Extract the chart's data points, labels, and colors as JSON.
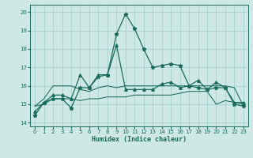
{
  "xlabel": "Humidex (Indice chaleur)",
  "background_color": "#cde8e5",
  "grid_color": "#9ececa",
  "line_color": "#1a6b5a",
  "xlim": [
    -0.5,
    23.5
  ],
  "ylim": [
    13.8,
    20.4
  ],
  "yticks": [
    14,
    15,
    16,
    17,
    18,
    19,
    20
  ],
  "xticks": [
    0,
    1,
    2,
    3,
    4,
    5,
    6,
    7,
    8,
    9,
    10,
    11,
    12,
    13,
    14,
    15,
    16,
    17,
    18,
    19,
    20,
    21,
    22,
    23
  ],
  "series": [
    [
      14.4,
      15.1,
      15.3,
      15.3,
      14.8,
      15.9,
      15.9,
      16.5,
      16.6,
      18.8,
      19.9,
      19.1,
      18.0,
      17.0,
      17.1,
      17.2,
      17.1,
      16.0,
      15.9,
      15.8,
      15.9,
      15.9,
      15.0,
      14.9
    ],
    [
      14.9,
      15.3,
      16.0,
      16.0,
      16.0,
      15.8,
      15.7,
      15.9,
      16.0,
      15.9,
      16.0,
      16.0,
      16.0,
      16.0,
      16.0,
      16.0,
      16.0,
      16.0,
      16.0,
      16.0,
      16.0,
      16.0,
      15.9,
      14.9
    ],
    [
      14.9,
      15.0,
      15.3,
      15.3,
      15.3,
      15.2,
      15.3,
      15.3,
      15.4,
      15.4,
      15.4,
      15.5,
      15.5,
      15.5,
      15.5,
      15.5,
      15.6,
      15.7,
      15.7,
      15.7,
      15.0,
      15.2,
      15.1,
      15.0
    ],
    [
      14.6,
      15.1,
      15.5,
      15.5,
      15.3,
      16.6,
      15.9,
      16.6,
      16.6,
      18.2,
      15.8,
      15.8,
      15.8,
      15.8,
      16.1,
      16.2,
      15.9,
      16.0,
      16.3,
      15.8,
      16.2,
      15.9,
      15.1,
      15.1
    ]
  ],
  "markers": [
    {
      "style": "*",
      "size": 3.5
    },
    {
      "style": "none",
      "size": 0
    },
    {
      "style": "none",
      "size": 0
    },
    {
      "style": "^",
      "size": 2.5
    }
  ],
  "linewidths": [
    0.9,
    0.75,
    0.75,
    0.9
  ]
}
